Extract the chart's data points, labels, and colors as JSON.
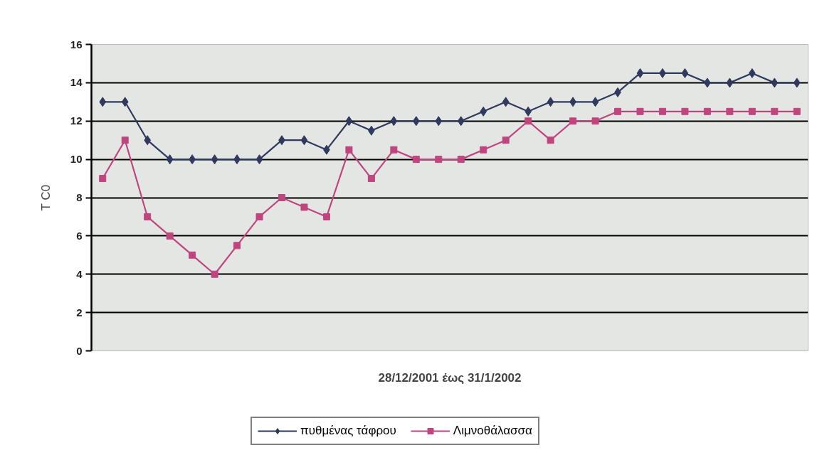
{
  "chart_data": {
    "type": "line",
    "xlabel": "28/12/2001 έως 31/1/2002",
    "ylabel": "T C0",
    "categories": [
      null,
      null,
      null,
      null,
      null,
      null,
      null,
      null,
      null,
      null,
      null,
      null,
      null,
      null,
      null,
      null,
      null,
      null,
      null,
      null,
      null,
      null,
      null,
      null,
      null,
      null,
      null,
      null,
      null,
      null,
      null,
      null
    ],
    "series": [
      {
        "name": "πυθμένας τάφρου",
        "color": "#2f3a5e",
        "marker": "diamond",
        "values": [
          13,
          13,
          11,
          10,
          10,
          10,
          10,
          10,
          11,
          11,
          10.5,
          12,
          11.5,
          12,
          12,
          12,
          12,
          12.5,
          13,
          12.5,
          13,
          13,
          13,
          13.5,
          14.5,
          14.5,
          14.5,
          14,
          14,
          14.5,
          14,
          14
        ]
      },
      {
        "name": "Λιμνοθάλασσα",
        "color": "#c0457e",
        "marker": "square",
        "values": [
          9,
          11,
          7,
          6,
          5,
          4,
          5.5,
          7,
          8,
          7.5,
          7,
          10.5,
          9,
          10.5,
          10,
          10,
          10,
          10.5,
          11,
          12,
          11,
          12,
          12,
          12.5,
          12.5,
          12.5,
          12.5,
          12.5,
          12.5,
          12.5,
          12.5,
          12.5
        ]
      }
    ],
    "ylim": [
      0,
      16
    ],
    "yticks": [
      0,
      2,
      4,
      6,
      8,
      10,
      12,
      14,
      16
    ],
    "grid": "y",
    "legend": "bottom",
    "tick_labels": "y"
  }
}
